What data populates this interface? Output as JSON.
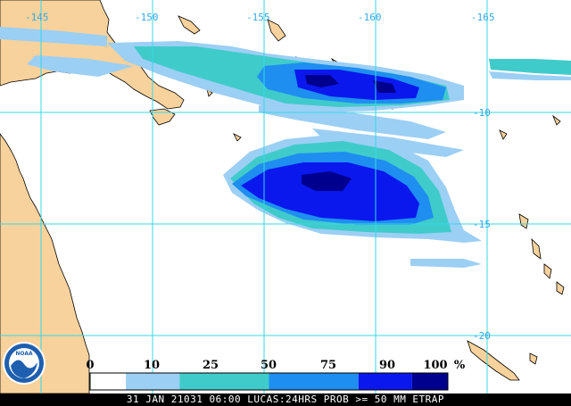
{
  "longitude_labels": [
    "-145",
    "-150",
    "-155",
    "-160",
    "-165"
  ],
  "latitude_labels": [
    "-10",
    "-15",
    "-20"
  ],
  "legend": {
    "ticks": [
      "0",
      "10",
      "25",
      "50",
      "75",
      "90",
      "100"
    ],
    "unit": "%",
    "bins": [
      {
        "from": 0,
        "to": 10,
        "color": "#ffffff"
      },
      {
        "from": 10,
        "to": 25,
        "color": "#9ccff4"
      },
      {
        "from": 25,
        "to": 50,
        "color": "#40cbcb"
      },
      {
        "from": 50,
        "to": 75,
        "color": "#1e8ef0"
      },
      {
        "from": 75,
        "to": 90,
        "color": "#0a18ee"
      },
      {
        "from": 90,
        "to": 100,
        "color": "#00008e"
      }
    ]
  },
  "logo_text": "NOAA",
  "footer": {
    "text": "31 JAN 21031 06:00 LUCAS:24HRS PROB >= 50 MM ETRAP"
  },
  "colors": {
    "land": "#f8d29c",
    "coast": "#000000",
    "grid": "#35d8e6",
    "ocean": "#ffffff"
  }
}
